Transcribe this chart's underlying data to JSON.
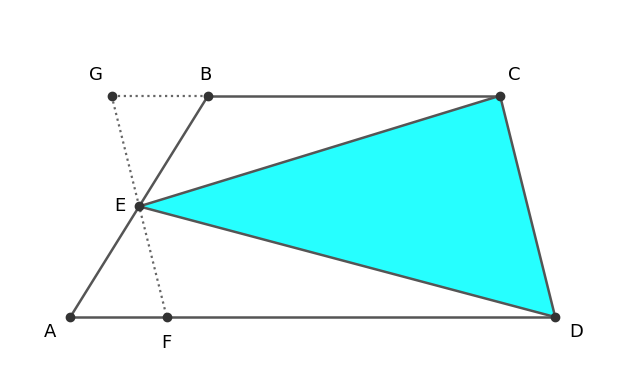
{
  "A": [
    0.7,
    0.3
  ],
  "B": [
    3.2,
    3.2
  ],
  "C": [
    8.5,
    3.2
  ],
  "D": [
    9.5,
    0.3
  ],
  "figure_bg": "#ffffff",
  "trapezium_color": "#555555",
  "fill_color": "#00FFFF",
  "fill_alpha": 0.85,
  "dot_color": "#333333",
  "dot_size": 6,
  "label_fontsize": 13,
  "label_color": "#000000",
  "dotted_color": "#666666",
  "xlim": [
    -0.5,
    10.8
  ],
  "ylim": [
    -0.3,
    4.4
  ]
}
